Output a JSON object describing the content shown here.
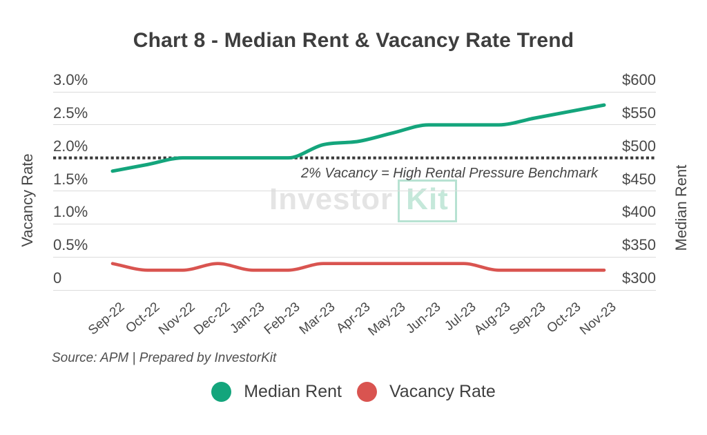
{
  "title": "Chart 8 - Median Rent & Vacancy Rate Trend",
  "chart_data": {
    "type": "line",
    "categories": [
      "Sep-22",
      "Oct-22",
      "Nov-22",
      "Dec-22",
      "Jan-23",
      "Feb-23",
      "Mar-23",
      "Apr-23",
      "May-23",
      "Jun-23",
      "Jul-23",
      "Aug-23",
      "Sep-23",
      "Oct-23",
      "Nov-23"
    ],
    "series": [
      {
        "name": "Median Rent",
        "axis": "right",
        "color": "#14a57c",
        "values": [
          480,
          490,
          500,
          500,
          500,
          500,
          520,
          525,
          538,
          550,
          550,
          550,
          560,
          570,
          580
        ]
      },
      {
        "name": "Vacancy Rate",
        "axis": "left",
        "color": "#d95450",
        "values": [
          0.4,
          0.3,
          0.3,
          0.4,
          0.3,
          0.3,
          0.4,
          0.4,
          0.4,
          0.4,
          0.4,
          0.3,
          0.3,
          0.3,
          0.3
        ]
      }
    ],
    "left_axis": {
      "label": "Vacancy Rate",
      "min": 0,
      "max": 3,
      "ticks": [
        "3.0%",
        "2.5%",
        "2.0%",
        "1.5%",
        "1.0%",
        "0.5%",
        "0"
      ]
    },
    "right_axis": {
      "label": "Median Rent",
      "min": 300,
      "max": 600,
      "ticks": [
        "$600",
        "$550",
        "$500",
        "$450",
        "$400",
        "$350",
        "$300"
      ]
    },
    "benchmark": {
      "value": 2,
      "label": "2% Vacancy = High Rental Pressure Benchmark",
      "color": "#3a3a3a"
    },
    "grid": true,
    "legend_position": "bottom",
    "line_style": "smooth"
  },
  "watermark": {
    "part1": "Investor",
    "part2": "Kit"
  },
  "source_note": "Source: APM | Prepared by InvestorKit",
  "legend": [
    {
      "label": "Median Rent",
      "color": "#14a57c"
    },
    {
      "label": "Vacancy Rate",
      "color": "#d95450"
    }
  ]
}
